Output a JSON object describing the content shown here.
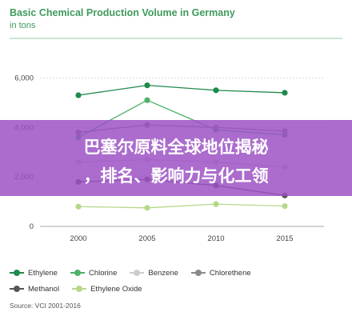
{
  "chart_data": {
    "type": "line",
    "title": "Basic Chemical Production Volume in Germany",
    "subtitle": "in tons",
    "categories": [
      "2000",
      "2005",
      "2010",
      "2015"
    ],
    "yticks": [
      "0",
      "2,000",
      "4,000",
      "6,000"
    ],
    "ylim": [
      0,
      6400
    ],
    "grid": true,
    "legend_position": "bottom",
    "series": [
      {
        "name": "Ethylene",
        "color": "#1f8a4c",
        "values": [
          5300,
          5700,
          5500,
          5400
        ]
      },
      {
        "name": "Chlorine",
        "color": "#4fb06a",
        "values": [
          3600,
          5100,
          3900,
          3700
        ]
      },
      {
        "name": "Benzene",
        "color": "#cdcdcd",
        "values": [
          2600,
          2700,
          2600,
          2400
        ]
      },
      {
        "name": "Chlorethene",
        "color": "#8a8a8a",
        "values": [
          3800,
          4100,
          4000,
          3850
        ]
      },
      {
        "name": "Methanol",
        "color": "#565656",
        "values": [
          1800,
          1900,
          1650,
          1250
        ]
      },
      {
        "name": "Ethylene Oxide",
        "color": "#b5d98a",
        "values": [
          800,
          750,
          900,
          820
        ]
      }
    ],
    "source": "Source: VCI 2001-2016"
  },
  "banner": {
    "line1": "巴塞尔原料全球地位揭秘",
    "line2": "，排名、影响力与化工领"
  }
}
